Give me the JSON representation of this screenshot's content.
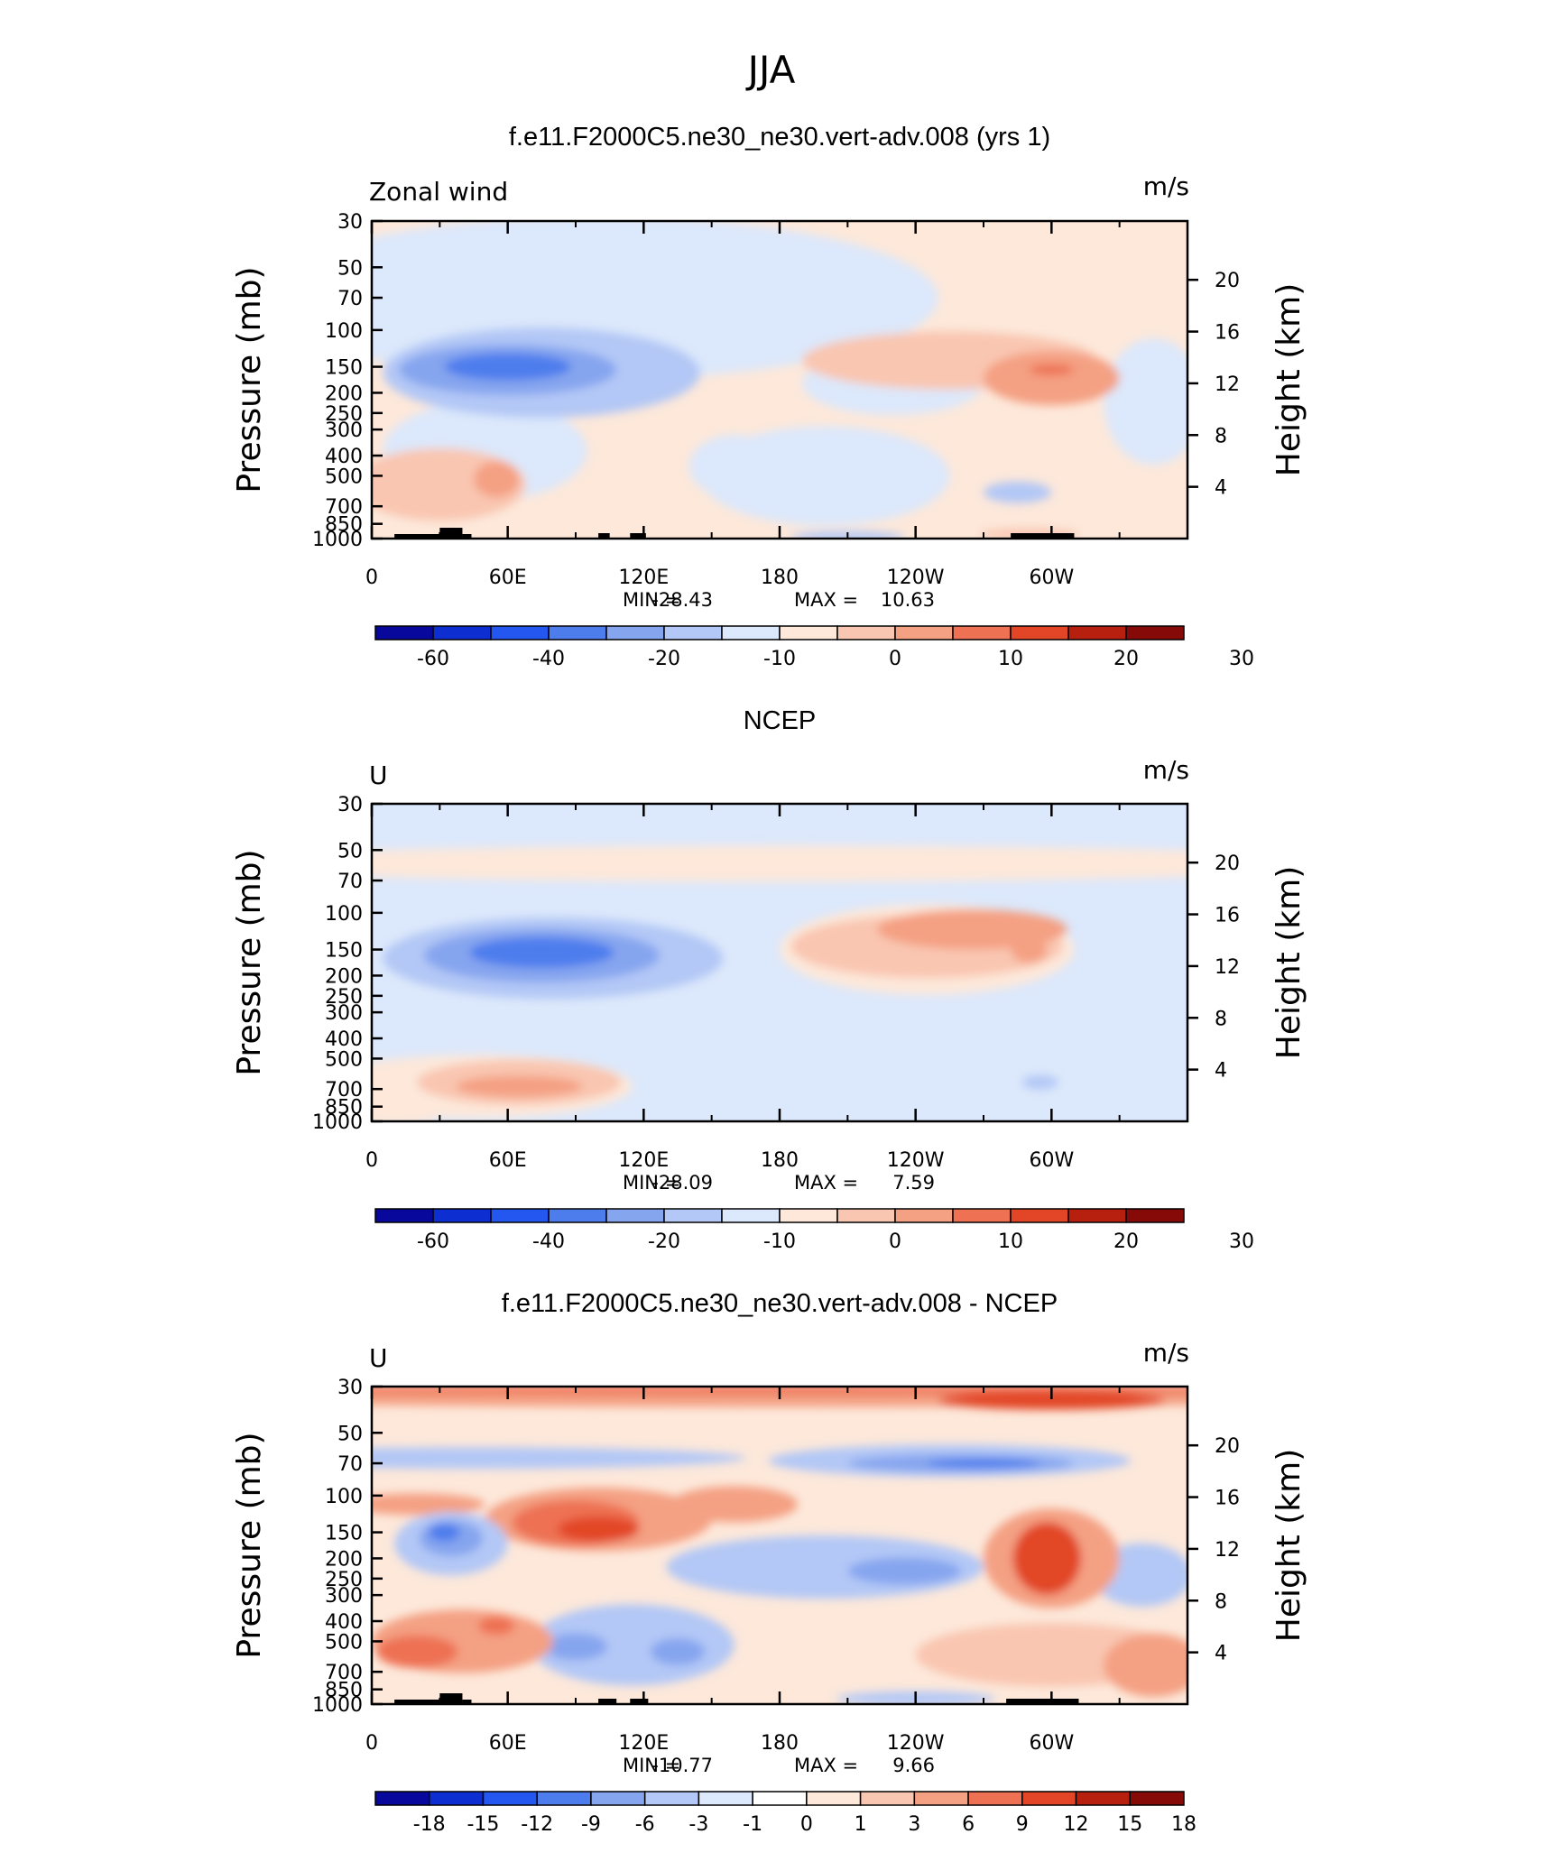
{
  "figure": {
    "title": "JJA",
    "xlabel": "",
    "ylabel": "Pressure (mb)",
    "ylabel2": "Height (km)",
    "units": "m/s"
  },
  "colors": {
    "main_scale": [
      "#08089c",
      "#0d2fd1",
      "#2357ef",
      "#4d7ded",
      "#86a5ef",
      "#b3c8f6",
      "#dce8fb",
      "#fde8da",
      "#f9c6b1",
      "#f4a083",
      "#ee7153",
      "#e24626",
      "#b7200f",
      "#850a08"
    ],
    "diff_scale": [
      "#08089c",
      "#0d2fd1",
      "#2357ef",
      "#4d7ded",
      "#86a5ef",
      "#b3c8f6",
      "#dce8fb",
      "#ffffff",
      "#fde8da",
      "#f9c6b1",
      "#f4a083",
      "#ee7153",
      "#e24626",
      "#b7200f",
      "#850a08"
    ],
    "topography": "#000000"
  },
  "chart_data": [
    {
      "type": "heatmap",
      "title": "f.e11.F2000C5.ne30_ne30.vert-adv.008 (yrs 1)",
      "corner_left": "Zonal wind",
      "corner_right": "m/s",
      "xticks": [
        "0",
        "60E",
        "120E",
        "180",
        "120W",
        "60W"
      ],
      "xtick_values": [
        0,
        60,
        120,
        180,
        240,
        300
      ],
      "xlim": [
        0,
        360
      ],
      "yticks": [
        "30",
        "50",
        "70",
        "100",
        "150",
        "200",
        "250",
        "300",
        "400",
        "500",
        "700",
        "850",
        "1000"
      ],
      "ytick_values": [
        30,
        50,
        70,
        100,
        150,
        200,
        250,
        300,
        400,
        500,
        700,
        850,
        1000
      ],
      "ylim": [
        1000,
        30
      ],
      "y2ticks": [
        "20",
        "16",
        "12",
        "8",
        "4"
      ],
      "y2tick_values": [
        20,
        16,
        12,
        8,
        4
      ],
      "stats": {
        "min_label": "MIN =",
        "min": "-28.43",
        "max_label": "MAX =",
        "max": "10.63"
      },
      "colorbar_labels": [
        "-60",
        "-40",
        "-20",
        "-10",
        "0",
        "10",
        "20",
        "30"
      ],
      "colorbar_label_at": [
        1,
        3,
        5,
        7,
        9,
        11,
        13,
        15
      ],
      "colorbar_scale": "main",
      "background_level": 7,
      "blobs": [
        {
          "lon": 100,
          "p": 70,
          "lw": 150,
          "pw": 0.9,
          "v": 6
        },
        {
          "lon": 50,
          "p": 380,
          "lw": 45,
          "pw": 0.55,
          "v": 6
        },
        {
          "lon": 160,
          "p": 450,
          "lw": 20,
          "pw": 0.35,
          "v": 6
        },
        {
          "lon": 230,
          "p": 180,
          "lw": 40,
          "pw": 0.35,
          "v": 6
        },
        {
          "lon": 200,
          "p": 500,
          "lw": 55,
          "pw": 0.55,
          "v": 6
        },
        {
          "lon": 345,
          "p": 220,
          "lw": 22,
          "pw": 0.7,
          "v": 6
        },
        {
          "lon": 75,
          "p": 160,
          "lw": 70,
          "pw": 0.5,
          "v": 5
        },
        {
          "lon": 60,
          "p": 155,
          "lw": 48,
          "pw": 0.28,
          "v": 4
        },
        {
          "lon": 60,
          "p": 150,
          "lw": 28,
          "pw": 0.15,
          "v": 3
        },
        {
          "lon": 210,
          "p": 980,
          "lw": 25,
          "pw": 0.06,
          "v": 5
        },
        {
          "lon": 285,
          "p": 600,
          "lw": 15,
          "pw": 0.12,
          "v": 5
        },
        {
          "lon": 255,
          "p": 140,
          "lw": 65,
          "pw": 0.32,
          "v": 8
        },
        {
          "lon": 300,
          "p": 170,
          "lw": 30,
          "pw": 0.3,
          "v": 9
        },
        {
          "lon": 300,
          "p": 155,
          "lw": 10,
          "pw": 0.06,
          "v": 10
        },
        {
          "lon": 30,
          "p": 550,
          "lw": 38,
          "pw": 0.4,
          "v": 8
        },
        {
          "lon": 55,
          "p": 520,
          "lw": 10,
          "pw": 0.2,
          "v": 9
        },
        {
          "lon": 290,
          "p": 950,
          "lw": 22,
          "pw": 0.06,
          "v": 8
        }
      ],
      "topography": [
        [
          10,
          34,
          5
        ],
        [
          30,
          40,
          12
        ],
        [
          40,
          44,
          5
        ],
        [
          100,
          105,
          6
        ],
        [
          114,
          121,
          6
        ],
        [
          282,
          310,
          6
        ]
      ]
    },
    {
      "type": "heatmap",
      "title": "NCEP",
      "corner_left": "U",
      "corner_right": "m/s",
      "xticks": [
        "0",
        "60E",
        "120E",
        "180",
        "120W",
        "60W"
      ],
      "xtick_values": [
        0,
        60,
        120,
        180,
        240,
        300
      ],
      "xlim": [
        0,
        360
      ],
      "yticks": [
        "30",
        "50",
        "70",
        "100",
        "150",
        "200",
        "250",
        "300",
        "400",
        "500",
        "700",
        "850",
        "1000"
      ],
      "ytick_values": [
        30,
        50,
        70,
        100,
        150,
        200,
        250,
        300,
        400,
        500,
        700,
        850,
        1000
      ],
      "ylim": [
        1000,
        30
      ],
      "y2ticks": [
        "20",
        "16",
        "12",
        "8",
        "4"
      ],
      "y2tick_values": [
        20,
        16,
        12,
        8,
        4
      ],
      "stats": {
        "min_label": "MIN =",
        "min": "-28.09",
        "max_label": "MAX =",
        "max": "7.59"
      },
      "colorbar_labels": [
        "-60",
        "-40",
        "-20",
        "-10",
        "0",
        "10",
        "20",
        "30"
      ],
      "colorbar_label_at": [
        1,
        3,
        5,
        7,
        9,
        11,
        13,
        15
      ],
      "colorbar_scale": "main",
      "background_level": 6,
      "blobs": [
        {
          "lon": 180,
          "p": 58,
          "lw": 260,
          "pw": 0.2,
          "v": 7
        },
        {
          "lon": 245,
          "p": 150,
          "lw": 65,
          "pw": 0.5,
          "v": 7
        },
        {
          "lon": 45,
          "p": 680,
          "lw": 70,
          "pw": 0.35,
          "v": 7
        },
        {
          "lon": 10,
          "p": 850,
          "lw": 25,
          "pw": 0.2,
          "v": 7
        },
        {
          "lon": 245,
          "p": 145,
          "lw": 60,
          "pw": 0.35,
          "v": 8
        },
        {
          "lon": 265,
          "p": 120,
          "lw": 42,
          "pw": 0.22,
          "v": 9
        },
        {
          "lon": 290,
          "p": 150,
          "lw": 8,
          "pw": 0.15,
          "v": 9
        },
        {
          "lon": 65,
          "p": 650,
          "lw": 45,
          "pw": 0.25,
          "v": 8
        },
        {
          "lon": 65,
          "p": 680,
          "lw": 28,
          "pw": 0.12,
          "v": 9
        },
        {
          "lon": 80,
          "p": 165,
          "lw": 75,
          "pw": 0.45,
          "v": 5
        },
        {
          "lon": 75,
          "p": 160,
          "lw": 52,
          "pw": 0.3,
          "v": 4
        },
        {
          "lon": 75,
          "p": 155,
          "lw": 32,
          "pw": 0.17,
          "v": 3
        },
        {
          "lon": 295,
          "p": 650,
          "lw": 8,
          "pw": 0.08,
          "v": 5
        }
      ],
      "topography": []
    },
    {
      "type": "heatmap",
      "title": "f.e11.F2000C5.ne30_ne30.vert-adv.008 - NCEP",
      "corner_left": "U",
      "corner_right": "m/s",
      "xticks": [
        "0",
        "60E",
        "120E",
        "180",
        "120W",
        "60W"
      ],
      "xtick_values": [
        0,
        60,
        120,
        180,
        240,
        300
      ],
      "xlim": [
        0,
        360
      ],
      "yticks": [
        "30",
        "50",
        "70",
        "100",
        "150",
        "200",
        "250",
        "300",
        "400",
        "500",
        "700",
        "850",
        "1000"
      ],
      "ytick_values": [
        30,
        50,
        70,
        100,
        150,
        200,
        250,
        300,
        400,
        500,
        700,
        850,
        1000
      ],
      "ylim": [
        1000,
        30
      ],
      "y2ticks": [
        "20",
        "16",
        "12",
        "8",
        "4"
      ],
      "y2tick_values": [
        20,
        16,
        12,
        8,
        4
      ],
      "stats": {
        "min_label": "MIN =",
        "min": "-10.77",
        "max_label": "MAX =",
        "max": "9.66"
      },
      "colorbar_labels": [
        "-18",
        "-15",
        "-12",
        "-9",
        "-6",
        "-3",
        "-1",
        "0",
        "1",
        "3",
        "6",
        "9",
        "12",
        "15",
        "18"
      ],
      "colorbar_label_at": [
        1,
        2,
        3,
        4,
        5,
        6,
        7,
        8,
        9,
        10,
        11,
        12,
        13,
        14,
        15
      ],
      "colorbar_scale": "diff",
      "background_level": 8,
      "blobs": [
        {
          "lon": 180,
          "p": 34,
          "lw": 300,
          "pw": 0.1,
          "v": 10
        },
        {
          "lon": 180,
          "p": 31,
          "lw": 300,
          "pw": 0.05,
          "v": 11
        },
        {
          "lon": 300,
          "p": 35,
          "lw": 50,
          "pw": 0.1,
          "v": 12
        },
        {
          "lon": 45,
          "p": 66,
          "lw": 120,
          "pw": 0.12,
          "v": 5
        },
        {
          "lon": 255,
          "p": 68,
          "lw": 80,
          "pw": 0.18,
          "v": 5
        },
        {
          "lon": 260,
          "p": 70,
          "lw": 50,
          "pw": 0.1,
          "v": 4
        },
        {
          "lon": 270,
          "p": 70,
          "lw": 25,
          "pw": 0.05,
          "v": 3
        },
        {
          "lon": 100,
          "p": 130,
          "lw": 50,
          "pw": 0.35,
          "v": 10
        },
        {
          "lon": 90,
          "p": 135,
          "lw": 28,
          "pw": 0.25,
          "v": 11
        },
        {
          "lon": 100,
          "p": 145,
          "lw": 18,
          "pw": 0.14,
          "v": 12
        },
        {
          "lon": 160,
          "p": 110,
          "lw": 28,
          "pw": 0.2,
          "v": 10
        },
        {
          "lon": 20,
          "p": 110,
          "lw": 30,
          "pw": 0.12,
          "v": 10
        },
        {
          "lon": 35,
          "p": 170,
          "lw": 25,
          "pw": 0.35,
          "v": 5
        },
        {
          "lon": 35,
          "p": 160,
          "lw": 14,
          "pw": 0.2,
          "v": 4
        },
        {
          "lon": 32,
          "p": 150,
          "lw": 7,
          "pw": 0.1,
          "v": 3
        },
        {
          "lon": 200,
          "p": 220,
          "lw": 70,
          "pw": 0.35,
          "v": 5
        },
        {
          "lon": 235,
          "p": 230,
          "lw": 25,
          "pw": 0.15,
          "v": 4
        },
        {
          "lon": 340,
          "p": 240,
          "lw": 22,
          "pw": 0.35,
          "v": 5
        },
        {
          "lon": 300,
          "p": 200,
          "lw": 30,
          "pw": 0.55,
          "v": 10
        },
        {
          "lon": 298,
          "p": 200,
          "lw": 15,
          "pw": 0.4,
          "v": 12
        },
        {
          "lon": 115,
          "p": 520,
          "lw": 45,
          "pw": 0.45,
          "v": 5
        },
        {
          "lon": 90,
          "p": 530,
          "lw": 14,
          "pw": 0.15,
          "v": 4
        },
        {
          "lon": 135,
          "p": 560,
          "lw": 12,
          "pw": 0.15,
          "v": 4
        },
        {
          "lon": 40,
          "p": 500,
          "lw": 40,
          "pw": 0.35,
          "v": 10
        },
        {
          "lon": 20,
          "p": 560,
          "lw": 18,
          "pw": 0.18,
          "v": 11
        },
        {
          "lon": 55,
          "p": 420,
          "lw": 8,
          "pw": 0.1,
          "v": 11
        },
        {
          "lon": 300,
          "p": 580,
          "lw": 60,
          "pw": 0.35,
          "v": 9
        },
        {
          "lon": 345,
          "p": 650,
          "lw": 22,
          "pw": 0.35,
          "v": 10
        },
        {
          "lon": 240,
          "p": 940,
          "lw": 35,
          "pw": 0.08,
          "v": 5
        }
      ],
      "topography": [
        [
          10,
          34,
          5
        ],
        [
          30,
          40,
          12
        ],
        [
          40,
          44,
          5
        ],
        [
          100,
          108,
          6
        ],
        [
          114,
          122,
          6
        ],
        [
          280,
          312,
          6
        ]
      ]
    }
  ]
}
